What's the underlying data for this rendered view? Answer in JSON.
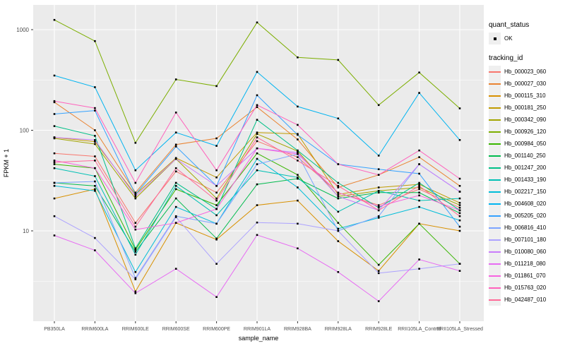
{
  "chart_data": {
    "type": "line",
    "title": "",
    "xlabel": "sample_name",
    "ylabel": "FPKM + 1",
    "y_scale": "log10",
    "ylim": [
      1.3,
      1700
    ],
    "grid": true,
    "panel_bg": "#EBEBEB",
    "grid_color": "#FFFFFF",
    "point_color": "#000000",
    "y_ticks": [
      10,
      100,
      1000
    ],
    "y_minor_ticks": [
      3.162,
      31.62,
      316.2
    ],
    "legend_position": "right",
    "categories": [
      "PB350LA",
      "RRIM600LA",
      "RRIM600LE",
      "RRIM600SE",
      "RRIM600PE",
      "RRIM901LA",
      "RRIM928BA",
      "RRIM928LA",
      "RRIM928LE",
      "RRII105LA_Control",
      "RRII105LA_Stressed"
    ],
    "series": [
      {
        "name": "Hb_000023_060",
        "color": "#F8766D",
        "values": [
          59,
          55,
          12,
          39,
          24,
          78,
          54,
          24,
          18,
          26,
          17
        ]
      },
      {
        "name": "Hb_000027_030",
        "color": "#EA8331",
        "values": [
          190,
          100,
          24,
          72,
          83,
          170,
          81,
          27,
          36,
          54,
          28
        ]
      },
      {
        "name": "Hb_000115_310",
        "color": "#D89000",
        "values": [
          21,
          26,
          2.5,
          12,
          8.2,
          18,
          20,
          7.9,
          4,
          11.8,
          10
        ]
      },
      {
        "name": "Hb_000181_250",
        "color": "#C09B00",
        "values": [
          85,
          77,
          23,
          53,
          34,
          95,
          92,
          23,
          27,
          29,
          19
        ]
      },
      {
        "name": "Hb_000342_090",
        "color": "#A3A500",
        "values": [
          83,
          73,
          21,
          52,
          21,
          92,
          62,
          22,
          25,
          27,
          18
        ]
      },
      {
        "name": "Hb_000926_120",
        "color": "#7CAE00",
        "values": [
          1250,
          770,
          75,
          320,
          275,
          1180,
          530,
          500,
          178,
          375,
          165
        ]
      },
      {
        "name": "Hb_000984_050",
        "color": "#39B600",
        "values": [
          46,
          42,
          6.5,
          26,
          18,
          59,
          36,
          12,
          4.6,
          11.8,
          4.7
        ]
      },
      {
        "name": "Hb_001140_250",
        "color": "#00BB4E",
        "values": [
          30,
          28,
          6.2,
          21,
          8.4,
          29,
          33,
          21,
          24,
          24,
          15
        ]
      },
      {
        "name": "Hb_001247_200",
        "color": "#00C087",
        "values": [
          110,
          88,
          6.7,
          30,
          16.5,
          127,
          63,
          30,
          17,
          30,
          16
        ]
      },
      {
        "name": "Hb_001433_190",
        "color": "#00C0B4",
        "values": [
          42,
          35,
          5.8,
          28,
          14.3,
          40,
          34,
          15.5,
          25,
          20,
          21
        ]
      },
      {
        "name": "Hb_002217_150",
        "color": "#00BDD8",
        "values": [
          28,
          25,
          3.9,
          17.3,
          11.8,
          52,
          27,
          10.5,
          13.5,
          17.3,
          12.7
        ]
      },
      {
        "name": "Hb_004608_020",
        "color": "#00B4F0",
        "values": [
          350,
          268,
          40,
          95,
          70,
          380,
          172,
          131,
          56,
          235,
          80
        ]
      },
      {
        "name": "Hb_005205_020",
        "color": "#35A2FF",
        "values": [
          145,
          157,
          23,
          69,
          28,
          223,
          90,
          46,
          41,
          37,
          11
        ]
      },
      {
        "name": "Hb_006816_410",
        "color": "#7CA4FF",
        "values": [
          30,
          31,
          3.4,
          14,
          11.8,
          46,
          58,
          10,
          14,
          46,
          24.5
        ]
      },
      {
        "name": "Hb_007101_180",
        "color": "#ACA2FF",
        "values": [
          14,
          8.5,
          3.3,
          13.7,
          4.7,
          12.1,
          11.8,
          10,
          3.8,
          4.2,
          4.7
        ]
      },
      {
        "name": "Hb_010080_060",
        "color": "#C97DFB",
        "values": [
          85,
          80,
          22,
          52,
          28,
          66,
          60,
          22,
          16,
          46,
          24.5
        ]
      },
      {
        "name": "Hb_011218_080",
        "color": "#E76BF3",
        "values": [
          9,
          6.4,
          2.4,
          4.2,
          2.2,
          9.1,
          6.7,
          3.9,
          2,
          5.2,
          4
        ]
      },
      {
        "name": "Hb_011861_070",
        "color": "#F763E0",
        "values": [
          50,
          42,
          10.3,
          12,
          16.5,
          66,
          58,
          24,
          17.5,
          22.5,
          16
        ]
      },
      {
        "name": "Hb_015763_020",
        "color": "#FF62BC",
        "values": [
          195,
          166,
          30,
          150,
          40,
          178,
          113,
          46,
          36,
          63,
          33
        ]
      },
      {
        "name": "Hb_042487_010",
        "color": "#FF6A98",
        "values": [
          48,
          50,
          11,
          42,
          20,
          85,
          50,
          28,
          16,
          28,
          14
        ]
      }
    ]
  },
  "legend": {
    "quant_status": {
      "title": "quant_status",
      "items": [
        {
          "label": "OK",
          "symbol": "black-point"
        }
      ]
    },
    "tracking_id": {
      "title": "tracking_id"
    }
  },
  "colors": {
    "tick_label": "#4D4D4D",
    "axis_title": "#000000",
    "legend_key_bg": "#EFEFEF"
  }
}
